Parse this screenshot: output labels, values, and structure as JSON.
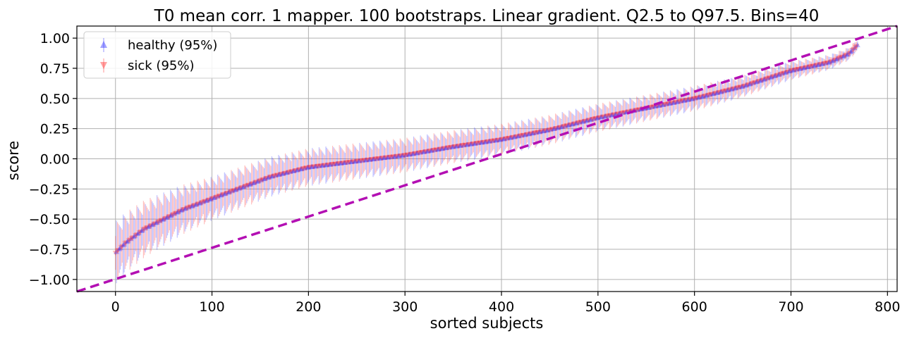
{
  "chart_data": {
    "type": "scatter",
    "title": "T0 mean corr. 1 mapper. 100 bootstraps. Linear gradient. Q2.5 to Q97.5. Bins=40",
    "xlabel": "sorted subjects",
    "ylabel": "score",
    "xlim": [
      -40,
      810
    ],
    "ylim": [
      -1.1,
      1.1
    ],
    "x_ticks": [
      0,
      100,
      200,
      300,
      400,
      500,
      600,
      700,
      800
    ],
    "y_ticks": [
      -1.0,
      -0.75,
      -0.5,
      -0.25,
      0.0,
      0.25,
      0.5,
      0.75,
      1.0
    ],
    "x_tick_labels": [
      "0",
      "100",
      "200",
      "300",
      "400",
      "500",
      "600",
      "700",
      "800"
    ],
    "y_tick_labels": [
      "−1.00",
      "−0.75",
      "−0.50",
      "−0.25",
      "0.00",
      "0.25",
      "0.50",
      "0.75",
      "1.00"
    ],
    "grid": true,
    "legend_position": "top-left",
    "n_subjects": 770,
    "series": [
      {
        "name": "healthy (95%)",
        "color": "#3333ff",
        "marker": "triangle-up"
      },
      {
        "name": "sick (95%)",
        "color": "#ff3333",
        "marker": "triangle-down"
      }
    ],
    "score_curve": {
      "x": [
        0,
        10,
        30,
        50,
        70,
        100,
        130,
        160,
        200,
        250,
        300,
        350,
        400,
        450,
        500,
        550,
        600,
        650,
        700,
        740,
        760,
        770
      ],
      "y": [
        -0.78,
        -0.7,
        -0.58,
        -0.5,
        -0.42,
        -0.33,
        -0.24,
        -0.15,
        -0.07,
        -0.02,
        0.03,
        0.1,
        0.16,
        0.24,
        0.34,
        0.42,
        0.5,
        0.6,
        0.73,
        0.8,
        0.87,
        0.95
      ]
    },
    "ci_halfwidth": {
      "x": [
        0,
        50,
        100,
        200,
        300,
        400,
        500,
        600,
        700,
        770
      ],
      "y": [
        0.2,
        0.17,
        0.14,
        0.12,
        0.11,
        0.1,
        0.09,
        0.08,
        0.06,
        0.04
      ]
    },
    "reference_line": {
      "x": [
        -40,
        810
      ],
      "y": [
        -1.1,
        1.1
      ],
      "color": "#b30fb3",
      "style": "dashed"
    }
  }
}
